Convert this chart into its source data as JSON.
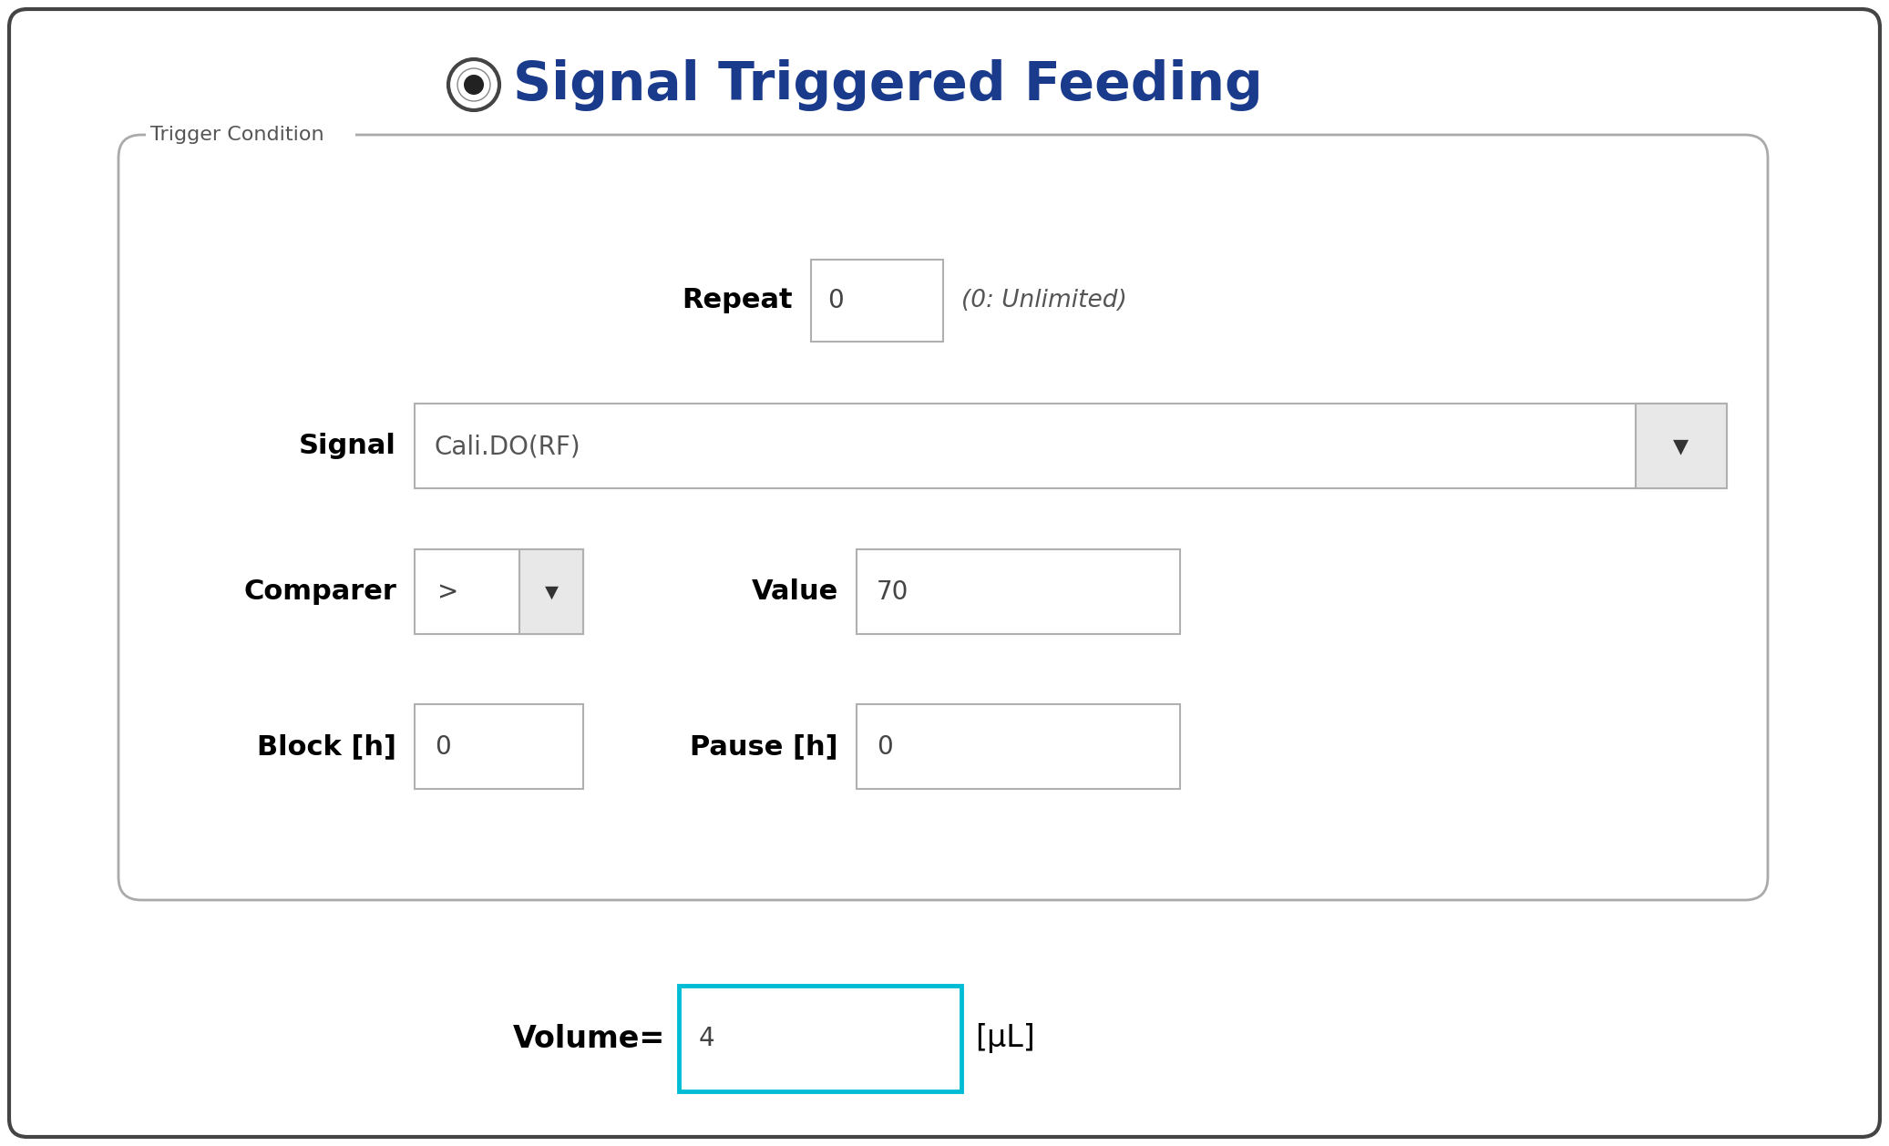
{
  "title": "Signal Triggered Feeding",
  "title_color": "#1a3a8c",
  "title_fontsize": 42,
  "bg_color": "#ffffff",
  "outer_bg": "#ffffff",
  "outer_border": "#333333",
  "trigger_label": "Trigger Condition",
  "trigger_border": "#aaaaaa",
  "repeat_label": "Repeat",
  "repeat_value": "0",
  "repeat_hint": "(0: Unlimited)",
  "signal_label": "Signal",
  "signal_value": "Cali.DO(RF)",
  "comparer_label": "Comparer",
  "comparer_value": ">",
  "value_label": "Value",
  "value_value": "70",
  "block_label": "Block [h]",
  "block_value": "0",
  "pause_label": "Pause [h]",
  "pause_value": "0",
  "volume_label": "Volume=",
  "volume_value": "4",
  "volume_unit": "[μL]",
  "input_bg": "#ffffff",
  "input_border": "#b0b0b0",
  "volume_border": "#00bcd4",
  "dropdown_arrow": "▼",
  "field_label_color": "#000000",
  "field_label_fontsize": 22,
  "input_fontsize": 20,
  "hint_fontsize": 19,
  "trigger_label_fontsize": 16,
  "volume_label_fontsize": 24
}
